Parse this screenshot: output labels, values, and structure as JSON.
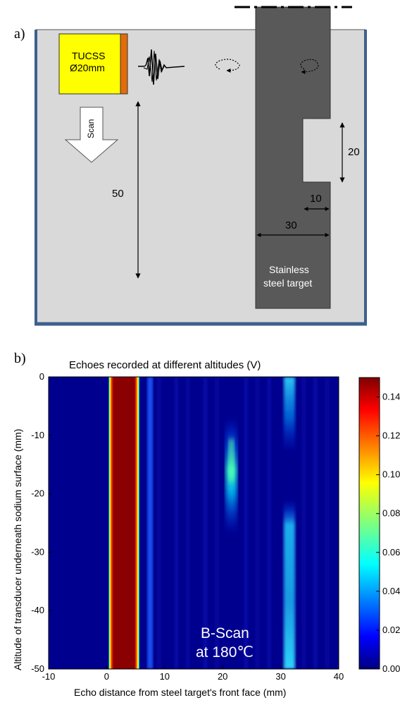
{
  "panel_a": {
    "label": "a)",
    "transducer": {
      "line1": "TUCSS",
      "line2": "Ø20mm"
    },
    "scan_label": "Scan",
    "dim_50": "50",
    "dim_20": "20",
    "dim_10": "10",
    "dim_30": "30",
    "target_line1": "Stainless",
    "target_line2": "steel target",
    "colors": {
      "tank_fill": "#d9d9d9",
      "tank_wall": "#3d5f8f",
      "steel": "#595959",
      "transducer": "#ffff00",
      "transducer_back": "#e36c09"
    }
  },
  "panel_b": {
    "label": "b)",
    "title": "Echoes recorded at different altitudes (V)",
    "xlabel": "Echo distance from steel target's front face (mm)",
    "ylabel": "Altitude of transducer underneath sodium surface (mm)",
    "annotation_line1": "B-Scan",
    "annotation_line2": "at 180℃"
  },
  "chart_data": {
    "type": "heatmap",
    "title": "Echoes recorded at different altitudes (V)",
    "xlabel": "Echo distance from steel target's front face (mm)",
    "ylabel": "Altitude of transducer underneath sodium surface (mm)",
    "xlim": [
      -10,
      40
    ],
    "ylim": [
      -50,
      0
    ],
    "x_ticks": [
      -10,
      0,
      10,
      20,
      30,
      40
    ],
    "y_ticks": [
      0,
      -10,
      -20,
      -30,
      -40,
      -50
    ],
    "colorbar": {
      "min": 0.0,
      "max": 0.15,
      "ticks": [
        "0.00",
        "0.02",
        "0.04",
        "0.06",
        "0.08",
        "0.10",
        "0.12",
        "0.14"
      ],
      "colormap": "jet"
    },
    "features": [
      {
        "name": "front face echo",
        "x_start": 0.5,
        "x_end": 5.5,
        "y_range": [
          -50,
          0
        ],
        "value": 0.15
      },
      {
        "name": "echo near 7.5 mm",
        "x_center": 7.5,
        "y_range": [
          -50,
          0
        ],
        "value": 0.035
      },
      {
        "name": "slot echo",
        "x_center": 21.5,
        "y_range": [
          -27,
          -7
        ],
        "value": 0.075
      },
      {
        "name": "back wall echo top",
        "x_center": 31.5,
        "y_range": [
          -13,
          0
        ],
        "value": 0.055
      },
      {
        "name": "back wall echo bottom",
        "x_center": 31.5,
        "y_range": [
          -50,
          -21
        ],
        "value": 0.055
      }
    ]
  }
}
